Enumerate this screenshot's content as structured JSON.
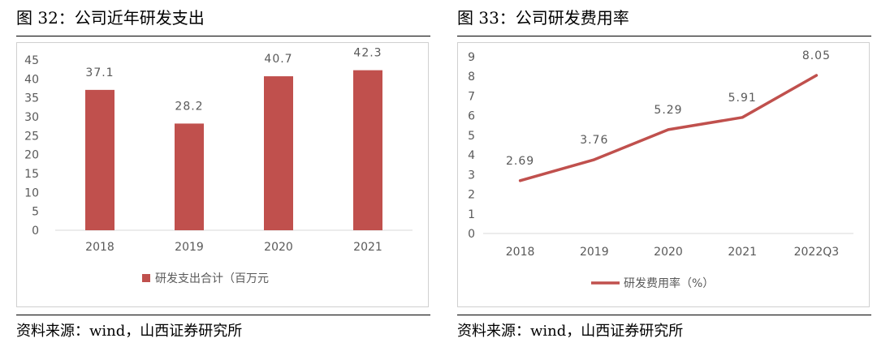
{
  "colors": {
    "series": "#C0504D",
    "axis": "#d9d9d9",
    "text": "#595959"
  },
  "left": {
    "title": "图 32：公司近年研发支出",
    "source": "资料来源：wind，山西证券研究所"
  },
  "right": {
    "title": "图 33：公司研发费用率",
    "source": "资料来源：wind，山西证券研究所"
  },
  "chart_data": [
    {
      "type": "bar",
      "categories": [
        "2018",
        "2019",
        "2020",
        "2021"
      ],
      "values": [
        37.1,
        28.2,
        40.7,
        42.3
      ],
      "value_labels": [
        "37.1",
        "28.2",
        "40.7",
        "42.3"
      ],
      "series_name": "研发支出合计（百万元",
      "ylim": [
        0,
        45
      ],
      "yticks": [
        0,
        5,
        10,
        15,
        20,
        25,
        30,
        35,
        40,
        45
      ],
      "legend_position": "bottom"
    },
    {
      "type": "line",
      "categories": [
        "2018",
        "2019",
        "2020",
        "2021",
        "2022Q3"
      ],
      "values": [
        2.69,
        3.76,
        5.29,
        5.91,
        8.05
      ],
      "value_labels": [
        "2.69",
        "3.76",
        "5.29",
        "5.91",
        "8.05"
      ],
      "series_name": "研发费用率（%）",
      "ylim": [
        0,
        9
      ],
      "yticks": [
        0,
        1,
        2,
        3,
        4,
        5,
        6,
        7,
        8,
        9
      ],
      "legend_position": "bottom"
    }
  ]
}
